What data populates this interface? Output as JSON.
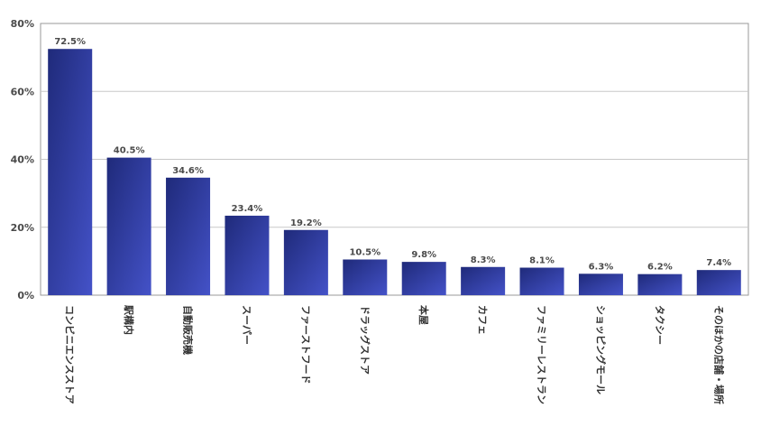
{
  "chart_data": {
    "type": "bar",
    "title": "",
    "xlabel": "",
    "ylabel": "",
    "categories": [
      "コンビニエンスストア",
      "駅構内",
      "自動販売機",
      "スーパー",
      "ファーストフード",
      "ドラッグストア",
      "本屋",
      "カフェ",
      "ファミリーレストラン",
      "ショッピングモール",
      "タクシー",
      "そのほかの店舗・場所"
    ],
    "values": [
      72.5,
      40.5,
      34.6,
      23.4,
      19.2,
      10.5,
      9.8,
      8.3,
      8.1,
      6.3,
      6.2,
      7.4
    ],
    "value_labels": [
      "72.5%",
      "40.5%",
      "34.6%",
      "23.4%",
      "19.2%",
      "10.5%",
      "9.8%",
      "8.3%",
      "8.1%",
      "6.3%",
      "6.2%",
      "7.4%"
    ],
    "ylim": [
      0,
      80
    ],
    "yticks": [
      0,
      20,
      40,
      60,
      80
    ],
    "ytick_labels": [
      "0%",
      "20%",
      "40%",
      "60%",
      "80%"
    ],
    "grid": true,
    "legend": "none",
    "colors": {
      "bar_dark": "#1f2a7a",
      "bar_light": "#4452c8",
      "grid": "#c8c8c8",
      "axis": "#999999",
      "label": "#4a4a4a"
    }
  }
}
